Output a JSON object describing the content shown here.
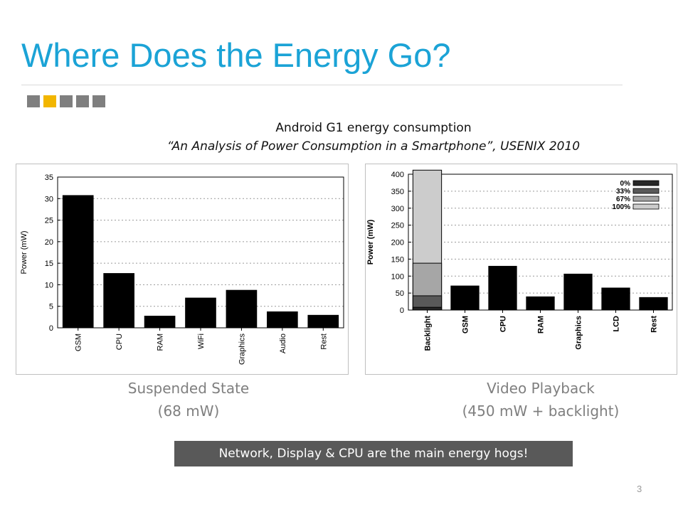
{
  "slide": {
    "title": "Where Does the Energy Go?",
    "caption_line1": "Android G1 energy consumption",
    "caption_line2": "“An Analysis of Power Consumption in a Smartphone”, USENIX 2010",
    "left_label_line1": "Suspended State",
    "left_label_line2": "(68 mW)",
    "right_label_line1": "Video Playback",
    "right_label_line2": "(450 mW + backlight)",
    "highlight": "Network, Display & CPU are the main energy hogs!",
    "page_number": "3",
    "colors": {
      "title": "#1ba3d6",
      "accent_square": "#f2b600",
      "grey_square": "#7f7f7f",
      "highlight_bg": "#595959"
    }
  },
  "chart_data": [
    {
      "type": "bar",
      "title": "",
      "xlabel": "",
      "ylabel": "Power (mW)",
      "ylim": [
        0,
        35
      ],
      "yticks": [
        0,
        5,
        10,
        15,
        20,
        25,
        30,
        35
      ],
      "grid": "horizontal dotted",
      "categories": [
        "GSM",
        "CPU",
        "RAM",
        "WiFi",
        "Graphics",
        "Audio",
        "Rest"
      ],
      "values": [
        30.8,
        12.7,
        2.8,
        7.0,
        8.8,
        3.8,
        3.0
      ],
      "color": "#000000"
    },
    {
      "type": "bar",
      "title": "",
      "xlabel": "",
      "ylabel": "Power (mW)",
      "ylim": [
        0,
        400
      ],
      "yticks": [
        0,
        50,
        100,
        150,
        200,
        250,
        300,
        350,
        400
      ],
      "grid": "horizontal dotted",
      "legend_position": "top-right",
      "categories": [
        "Backlight",
        "GSM",
        "CPU",
        "RAM",
        "Graphics",
        "LCD",
        "Rest"
      ],
      "values": [
        null,
        72,
        130,
        40,
        107,
        66,
        38
      ],
      "backlight_stack": [
        {
          "name": "0%",
          "value": 8,
          "color": "#262626"
        },
        {
          "name": "33%",
          "value": 42,
          "color": "#595959"
        },
        {
          "name": "67%",
          "value": 138,
          "color": "#a6a6a6"
        },
        {
          "name": "100%",
          "value": 412,
          "color": "#cccccc"
        }
      ],
      "color": "#000000"
    }
  ]
}
